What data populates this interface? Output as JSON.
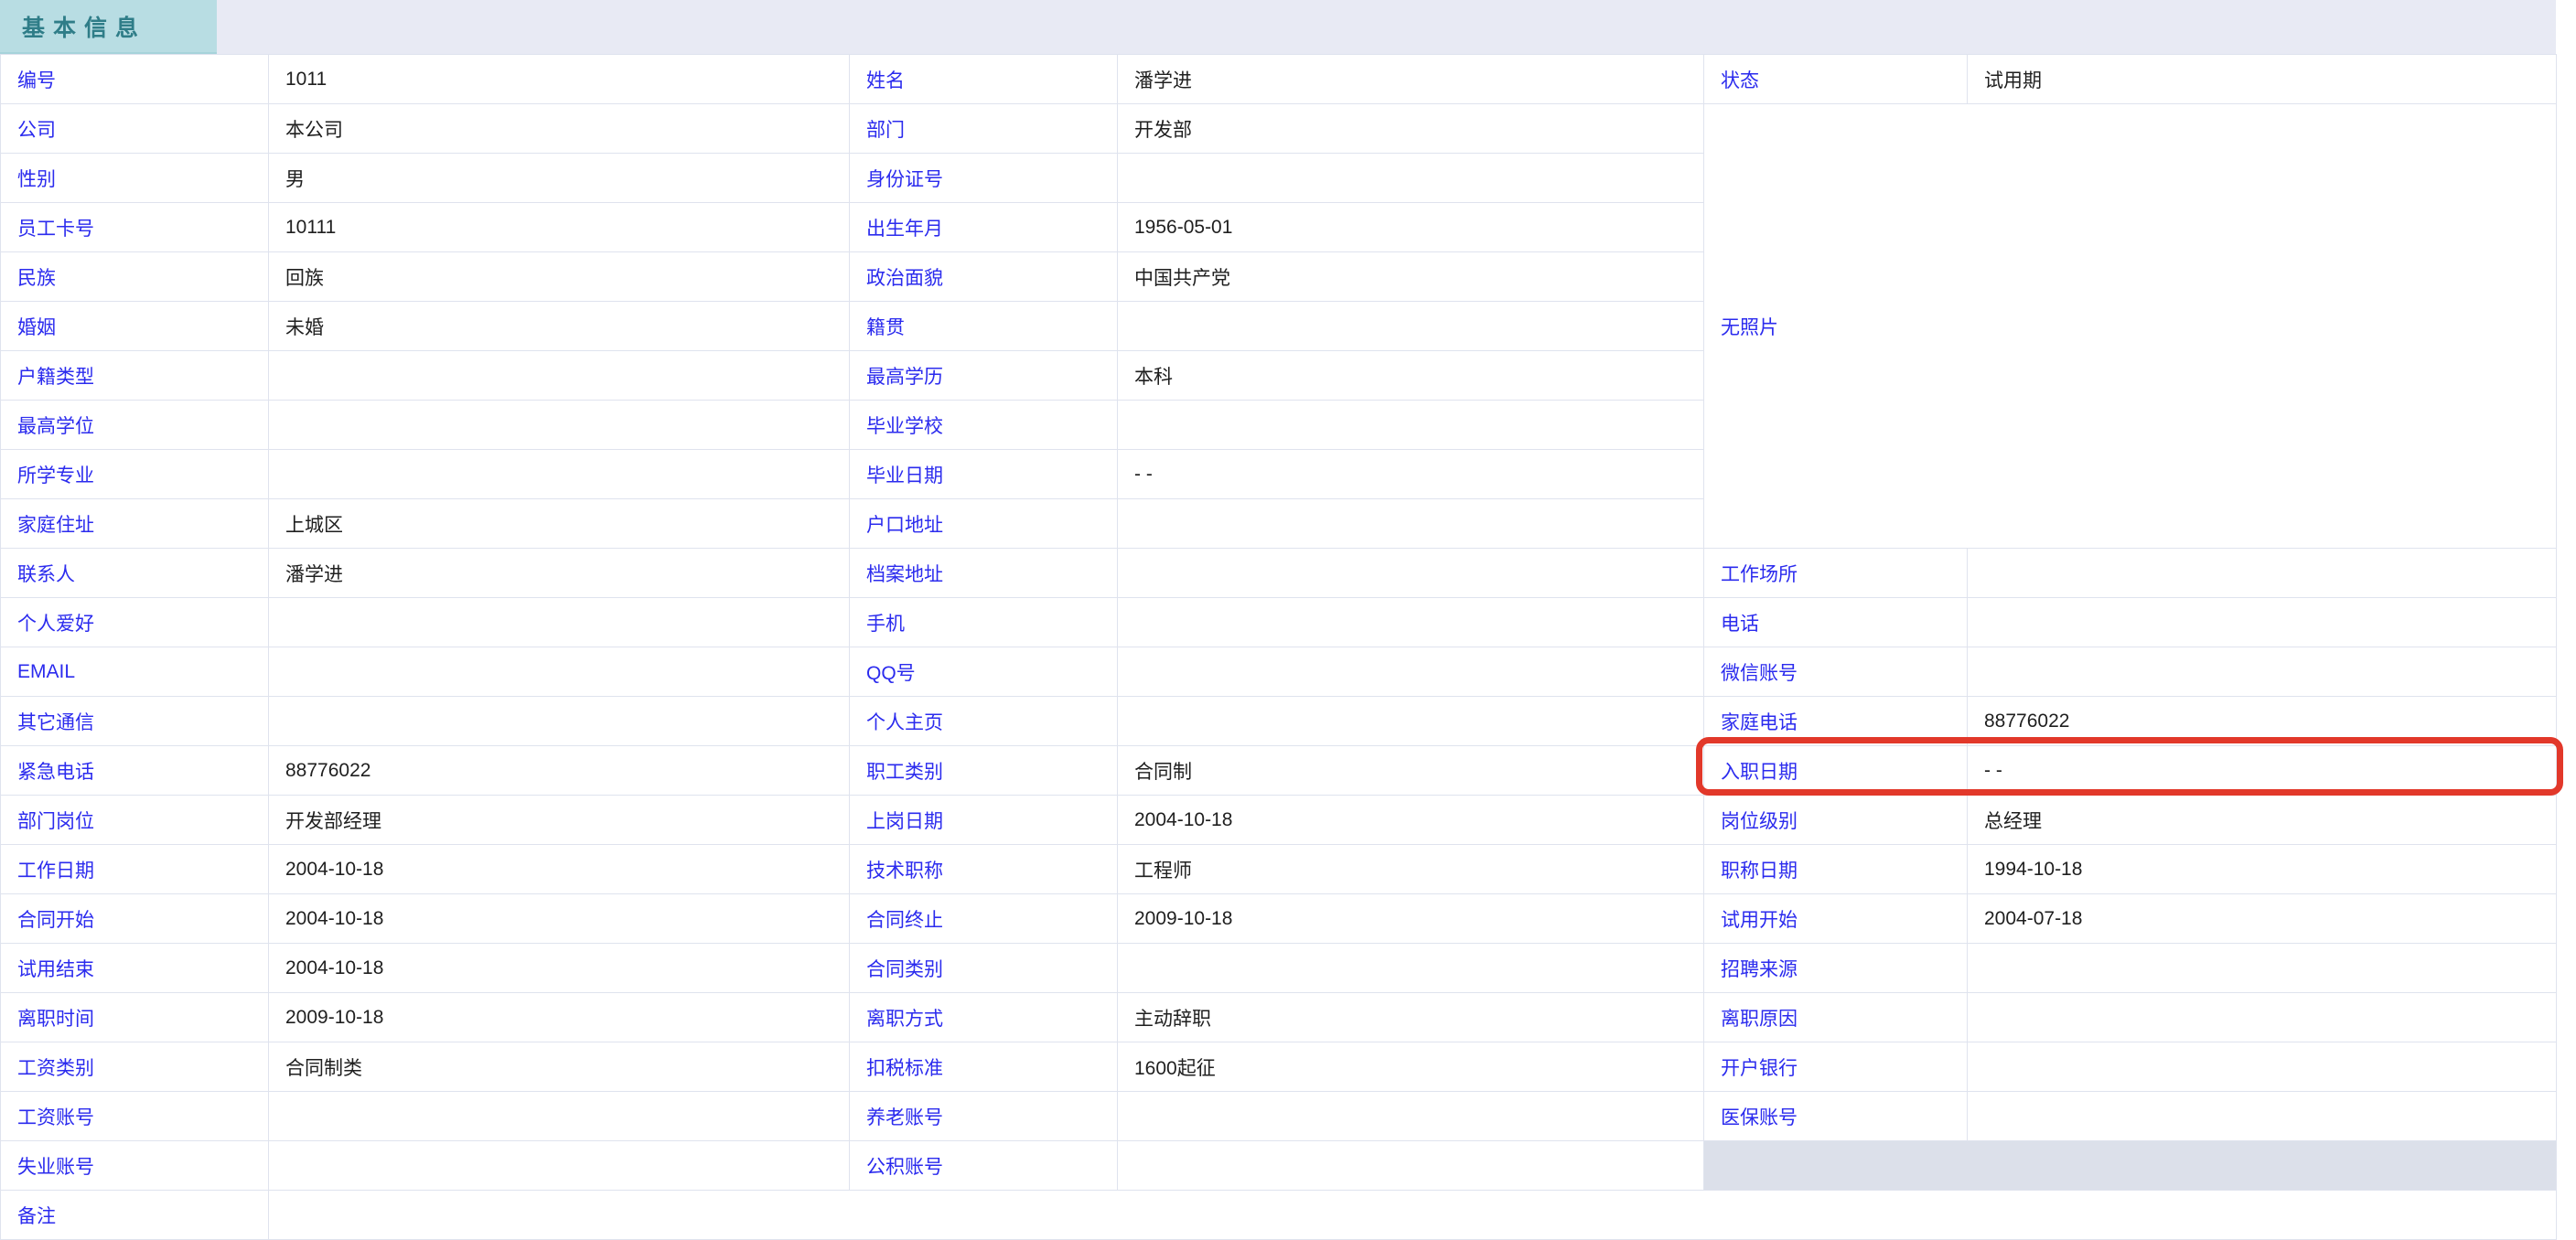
{
  "tab": {
    "label": "基本信息"
  },
  "photo": {
    "placeholder": "无照片"
  },
  "colors": {
    "tab_bg": "#b8dde3",
    "tab_text": "#2f7d88",
    "strip_bg": "#e8eaf4",
    "label_text": "#2b2bee",
    "value_text": "#1f1f1f",
    "grid_line": "#dfe3ee",
    "gray_cell": "#dce0ea",
    "highlight": "#e2382a"
  },
  "highlight": {
    "field": "入职日期",
    "value": "- -"
  },
  "table": {
    "col_left": [
      {
        "label": "编号",
        "value": "1011"
      },
      {
        "label": "公司",
        "value": "本公司"
      },
      {
        "label": "性别",
        "value": "男"
      },
      {
        "label": "员工卡号",
        "value": "10111"
      },
      {
        "label": "民族",
        "value": "回族"
      },
      {
        "label": "婚姻",
        "value": "未婚"
      },
      {
        "label": "户籍类型",
        "value": ""
      },
      {
        "label": "最高学位",
        "value": ""
      },
      {
        "label": "所学专业",
        "value": ""
      },
      {
        "label": "家庭住址",
        "value": "上城区"
      },
      {
        "label": "联系人",
        "value": "潘学进"
      },
      {
        "label": "个人爱好",
        "value": ""
      },
      {
        "label": "EMAIL",
        "value": ""
      },
      {
        "label": "其它通信",
        "value": ""
      },
      {
        "label": "紧急电话",
        "value": "88776022"
      },
      {
        "label": "部门岗位",
        "value": "开发部经理"
      },
      {
        "label": "工作日期",
        "value": "2004-10-18"
      },
      {
        "label": "合同开始",
        "value": "2004-10-18"
      },
      {
        "label": "试用结束",
        "value": "2004-10-18"
      },
      {
        "label": "离职时间",
        "value": "2009-10-18"
      },
      {
        "label": "工资类别",
        "value": "合同制类"
      },
      {
        "label": "工资账号",
        "value": ""
      },
      {
        "label": "失业账号",
        "value": ""
      },
      {
        "label": "备注",
        "value": ""
      }
    ],
    "col_middle": [
      {
        "label": "姓名",
        "value": "潘学进"
      },
      {
        "label": "部门",
        "value": "开发部"
      },
      {
        "label": "身份证号",
        "value": ""
      },
      {
        "label": "出生年月",
        "value": "1956-05-01"
      },
      {
        "label": "政治面貌",
        "value": "中国共产党"
      },
      {
        "label": "籍贯",
        "value": ""
      },
      {
        "label": "最高学历",
        "value": "本科"
      },
      {
        "label": "毕业学校",
        "value": ""
      },
      {
        "label": "毕业日期",
        "value": "- -"
      },
      {
        "label": "户口地址",
        "value": ""
      },
      {
        "label": "档案地址",
        "value": ""
      },
      {
        "label": "手机",
        "value": ""
      },
      {
        "label": "QQ号",
        "value": ""
      },
      {
        "label": "个人主页",
        "value": ""
      },
      {
        "label": "职工类别",
        "value": "合同制"
      },
      {
        "label": "上岗日期",
        "value": "2004-10-18"
      },
      {
        "label": "技术职称",
        "value": "工程师"
      },
      {
        "label": "合同终止",
        "value": "2009-10-18"
      },
      {
        "label": "合同类别",
        "value": ""
      },
      {
        "label": "离职方式",
        "value": "主动辞职"
      },
      {
        "label": "扣税标准",
        "value": "1600起征"
      },
      {
        "label": "养老账号",
        "value": ""
      },
      {
        "label": "公积账号",
        "value": ""
      }
    ],
    "col_right_top": {
      "label": "状态",
      "value": "试用期"
    },
    "col_right": [
      {
        "label": "工作场所",
        "value": ""
      },
      {
        "label": "电话",
        "value": ""
      },
      {
        "label": "微信账号",
        "value": ""
      },
      {
        "label": "家庭电话",
        "value": "88776022"
      },
      {
        "label": "入职日期",
        "value": "- -"
      },
      {
        "label": "岗位级别",
        "value": "总经理"
      },
      {
        "label": "职称日期",
        "value": "1994-10-18"
      },
      {
        "label": "试用开始",
        "value": "2004-07-18"
      },
      {
        "label": "招聘来源",
        "value": ""
      },
      {
        "label": "离职原因",
        "value": ""
      },
      {
        "label": "开户银行",
        "value": ""
      },
      {
        "label": "医保账号",
        "value": ""
      }
    ]
  }
}
